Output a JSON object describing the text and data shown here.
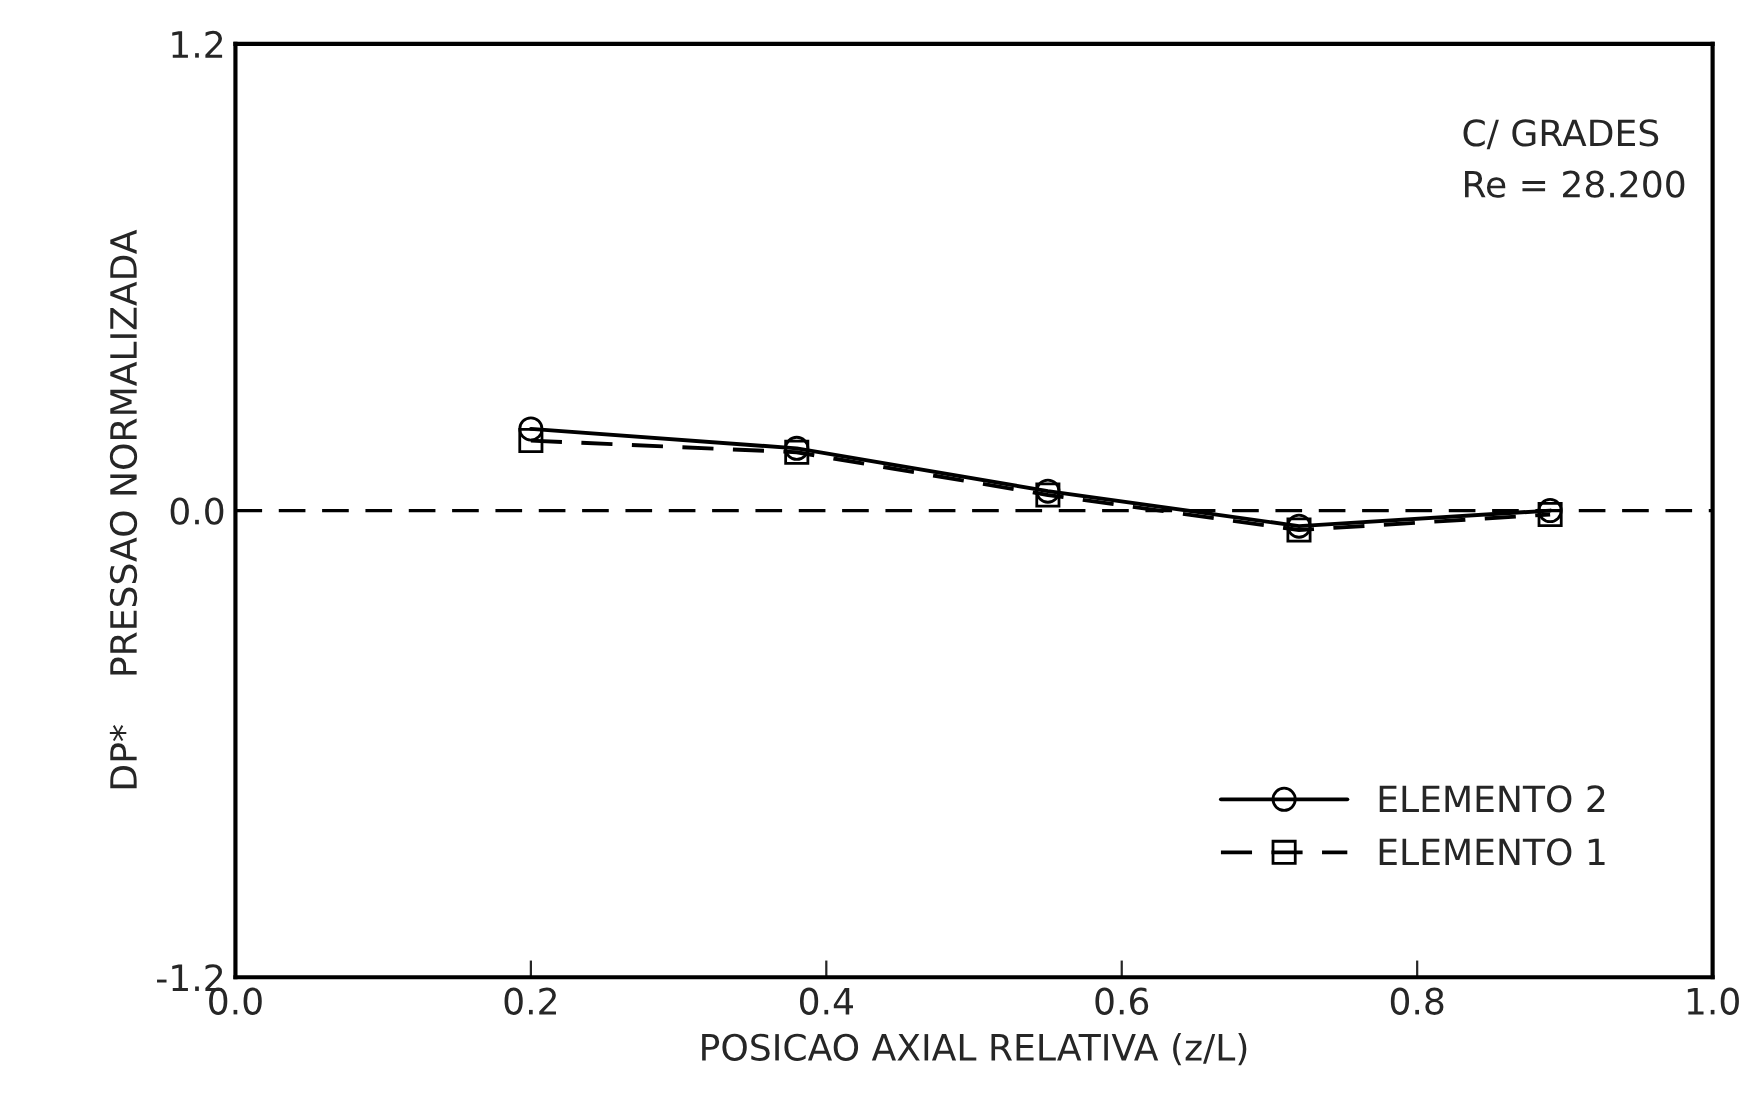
{
  "chart_data": {
    "type": "line",
    "xlabel": "POSICAO AXIAL RELATIVA (z/L)",
    "ylabel": "DP*    PRESSAO NORMALIZADA",
    "annotations": [
      "C/ GRADES",
      "Re = 28.200"
    ],
    "x": [
      0.2,
      0.38,
      0.55,
      0.72,
      0.89
    ],
    "series": [
      {
        "name": "ELEMENTO 2",
        "color": "#000000",
        "values": [
          0.21,
          0.16,
          0.05,
          -0.04,
          0.0
        ],
        "marker": "circle",
        "line_style": "solid"
      },
      {
        "name": "ELEMENTO 1",
        "color": "#000000",
        "values": [
          0.18,
          0.15,
          0.04,
          -0.05,
          -0.01
        ],
        "marker": "square",
        "line_style": "dashed"
      }
    ],
    "xlim": [
      0.0,
      1.0
    ],
    "xticks": [
      {
        "value": 0.0,
        "label": "0.0"
      },
      0.2,
      0.4,
      0.6,
      0.8,
      {
        "value": 1.0,
        "label": "1.0"
      }
    ],
    "ylim": [
      -1.2,
      1.2
    ],
    "yticks": [
      -1.2,
      {
        "value": 0.0,
        "label": "0.0"
      },
      1.2
    ],
    "ref_lines": [
      {
        "axis": "y",
        "value": 0.0,
        "line_style": "dashed",
        "color": "#000000"
      }
    ],
    "legend": "bottom right",
    "grid": false
  }
}
